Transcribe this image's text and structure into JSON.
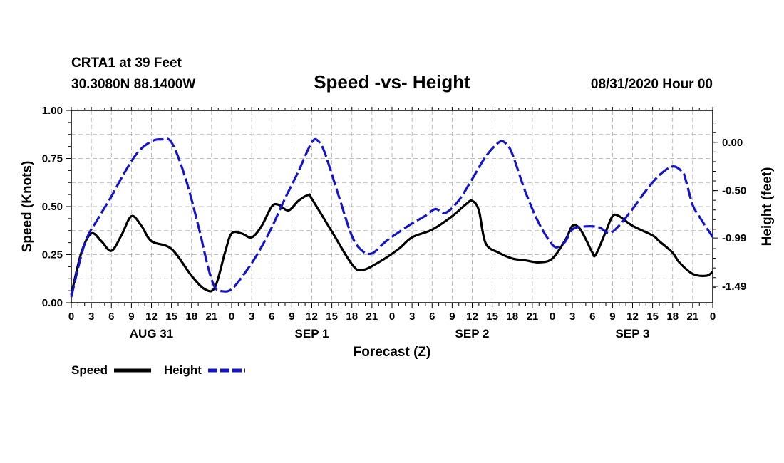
{
  "header": {
    "station": "CRTA1 at 39 Feet",
    "coords": "30.3080N 88.1400W",
    "title": "Speed -vs- Height",
    "datetime": "08/31/2020 Hour 00"
  },
  "colors": {
    "speed": "#000000",
    "height": "#1414c8",
    "grid": "#aaaaaa"
  },
  "chart_data": {
    "type": "line",
    "title": "Speed -vs- Height",
    "xlabel": "Forecast (Z)",
    "ylabel_left": "Speed (Knots)",
    "ylabel_right": "Height (feet)",
    "x_unit": "forecast hour",
    "xlim": [
      0,
      96
    ],
    "ylim_left": [
      0,
      1
    ],
    "ylim_right": [
      -1.66,
      0.33
    ],
    "left_ticks": [
      "0.00",
      "0.25",
      "0.50",
      "0.75",
      "1.00"
    ],
    "left_tick_values": [
      0,
      0.25,
      0.5,
      0.75,
      1.0
    ],
    "right_ticks": [
      "0.00",
      "-0.50",
      "-0.99",
      "-1.49"
    ],
    "right_tick_values": [
      0.0,
      -0.5,
      -0.99,
      -1.49
    ],
    "x_tick_labels": [
      "0",
      "3",
      "6",
      "9",
      "12",
      "15",
      "18",
      "21",
      "0",
      "3",
      "6",
      "9",
      "12",
      "15",
      "18",
      "21",
      "0",
      "3",
      "6",
      "9",
      "12",
      "15",
      "18",
      "21",
      "0",
      "3",
      "6",
      "9",
      "12",
      "15",
      "18",
      "21",
      "0"
    ],
    "day_labels": [
      {
        "label": "AUG 31",
        "x": 12
      },
      {
        "label": "SEP 1",
        "x": 36
      },
      {
        "label": "SEP 2",
        "x": 60
      },
      {
        "label": "SEP 3",
        "x": 84
      }
    ],
    "series": [
      {
        "name": "Speed",
        "axis": "left",
        "style": "solid",
        "points": [
          [
            0,
            0.04
          ],
          [
            1.5,
            0.26
          ],
          [
            3,
            0.36
          ],
          [
            4.5,
            0.32
          ],
          [
            6,
            0.27
          ],
          [
            7.5,
            0.35
          ],
          [
            9,
            0.45
          ],
          [
            10.5,
            0.4
          ],
          [
            12,
            0.32
          ],
          [
            15,
            0.28
          ],
          [
            18,
            0.14
          ],
          [
            20,
            0.07
          ],
          [
            21.5,
            0.08
          ],
          [
            23,
            0.26
          ],
          [
            24,
            0.36
          ],
          [
            25.5,
            0.36
          ],
          [
            27,
            0.34
          ],
          [
            28.5,
            0.4
          ],
          [
            30,
            0.5
          ],
          [
            31,
            0.51
          ],
          [
            32.5,
            0.48
          ],
          [
            34,
            0.53
          ],
          [
            35.5,
            0.56
          ],
          [
            36,
            0.54
          ],
          [
            39,
            0.37
          ],
          [
            42,
            0.2
          ],
          [
            43.5,
            0.17
          ],
          [
            46,
            0.21
          ],
          [
            49,
            0.28
          ],
          [
            51,
            0.34
          ],
          [
            54,
            0.38
          ],
          [
            57,
            0.45
          ],
          [
            59,
            0.51
          ],
          [
            60,
            0.53
          ],
          [
            61,
            0.48
          ],
          [
            62,
            0.31
          ],
          [
            64,
            0.26
          ],
          [
            66,
            0.23
          ],
          [
            68,
            0.22
          ],
          [
            70,
            0.21
          ],
          [
            72,
            0.23
          ],
          [
            74,
            0.33
          ],
          [
            75,
            0.4
          ],
          [
            76,
            0.39
          ],
          [
            77,
            0.33
          ],
          [
            78,
            0.26
          ],
          [
            78.5,
            0.25
          ],
          [
            80,
            0.37
          ],
          [
            81,
            0.45
          ],
          [
            82,
            0.45
          ],
          [
            84,
            0.4
          ],
          [
            87,
            0.35
          ],
          [
            88,
            0.32
          ],
          [
            90,
            0.26
          ],
          [
            91,
            0.21
          ],
          [
            93,
            0.15
          ],
          [
            95,
            0.14
          ],
          [
            96,
            0.16
          ]
        ]
      },
      {
        "name": "Height",
        "axis": "right",
        "style": "dashed",
        "points": [
          [
            0,
            -1.6
          ],
          [
            2,
            -1.05
          ],
          [
            4,
            -0.79
          ],
          [
            6,
            -0.56
          ],
          [
            8,
            -0.31
          ],
          [
            10,
            -0.1
          ],
          [
            12,
            0.01
          ],
          [
            13.5,
            0.03
          ],
          [
            15,
            0.0
          ],
          [
            17,
            -0.35
          ],
          [
            19,
            -0.86
          ],
          [
            20.5,
            -1.3
          ],
          [
            21.5,
            -1.5
          ],
          [
            22.5,
            -1.54
          ],
          [
            24,
            -1.52
          ],
          [
            26,
            -1.35
          ],
          [
            28,
            -1.14
          ],
          [
            30,
            -0.88
          ],
          [
            32,
            -0.58
          ],
          [
            34,
            -0.3
          ],
          [
            36,
            0.0
          ],
          [
            37,
            0.01
          ],
          [
            38,
            -0.12
          ],
          [
            40,
            -0.55
          ],
          [
            42,
            -0.97
          ],
          [
            43.5,
            -1.12
          ],
          [
            45,
            -1.15
          ],
          [
            47,
            -1.03
          ],
          [
            49,
            -0.93
          ],
          [
            51,
            -0.84
          ],
          [
            53,
            -0.76
          ],
          [
            54.5,
            -0.69
          ],
          [
            56,
            -0.73
          ],
          [
            58,
            -0.6
          ],
          [
            60,
            -0.38
          ],
          [
            62,
            -0.15
          ],
          [
            64,
            0.0
          ],
          [
            65,
            -0.01
          ],
          [
            66,
            -0.12
          ],
          [
            68,
            -0.52
          ],
          [
            70,
            -0.84
          ],
          [
            72,
            -1.06
          ],
          [
            73,
            -1.08
          ],
          [
            74,
            -1.02
          ],
          [
            75,
            -0.9
          ],
          [
            77,
            -0.87
          ],
          [
            79,
            -0.88
          ],
          [
            80.5,
            -0.94
          ],
          [
            82,
            -0.86
          ],
          [
            84,
            -0.69
          ],
          [
            86,
            -0.5
          ],
          [
            88,
            -0.34
          ],
          [
            90,
            -0.25
          ],
          [
            91.5,
            -0.31
          ],
          [
            92,
            -0.4
          ],
          [
            93,
            -0.65
          ],
          [
            94,
            -0.77
          ],
          [
            96,
            -0.98
          ]
        ]
      }
    ],
    "legend": [
      {
        "label": "Speed",
        "style": "solid"
      },
      {
        "label": "Height",
        "style": "dashed"
      }
    ],
    "legend_position": "bottom-left"
  }
}
